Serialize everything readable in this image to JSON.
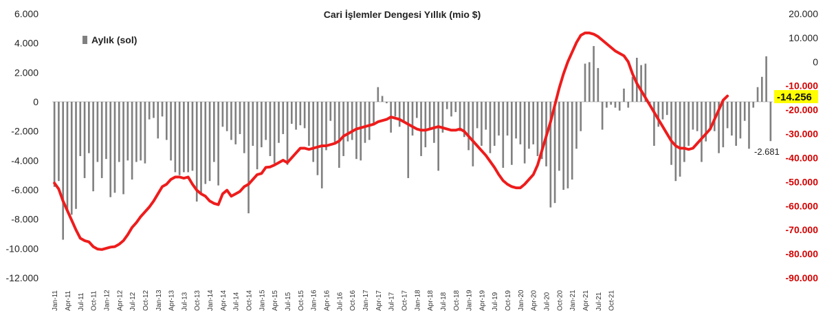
{
  "chart_data": {
    "type": "bar+line",
    "title": "Cari İşlemler Dengesi Yıllık (mio $)",
    "legend": {
      "label": "Aylık (sol)",
      "placement": "top-left"
    },
    "left_axis": {
      "range": [
        -12000,
        6000
      ],
      "ticks": [
        6000,
        4000,
        2000,
        0,
        -2000,
        -4000,
        -6000,
        -8000,
        -10000,
        -12000
      ],
      "tick_labels": [
        "6.000",
        "4.000",
        "2.000",
        "0",
        "-2.000",
        "-4.000",
        "-6.000",
        "-8.000",
        "-10.000",
        "-12.000"
      ]
    },
    "right_axis": {
      "range": [
        -90000,
        20000
      ],
      "ticks": [
        20000,
        10000,
        0,
        -10000,
        -20000,
        -30000,
        -40000,
        -50000,
        -60000,
        -70000,
        -80000,
        -90000
      ],
      "tick_labels": [
        "20.000",
        "10.000",
        "0",
        "-10.000",
        "-20.000",
        "-30.000",
        "-40.000",
        "-50.000",
        "-60.000",
        "-70.000",
        "-80.000",
        "-90.000"
      ]
    },
    "x_tick_labels": [
      "Jan-11",
      "Apr-11",
      "Jul-11",
      "Oct-11",
      "Jan-12",
      "Apr-12",
      "Jul-12",
      "Oct-12",
      "Jan-13",
      "Apr-13",
      "Jul-13",
      "Oct-13",
      "Jan-14",
      "Apr-14",
      "Jul-14",
      "Oct-14",
      "Jan-15",
      "Apr-15",
      "Jul-15",
      "Oct-15",
      "Jan-16",
      "Apr-16",
      "Jul-16",
      "Oct-16",
      "Jan-17",
      "Apr-17",
      "Jul-17",
      "Oct-17",
      "Jan-18",
      "Apr-18",
      "Jul-18",
      "Oct-18",
      "Jan-19",
      "Apr-19",
      "Jul-19",
      "Oct-19",
      "Jan-20",
      "Apr-20",
      "Jul-20",
      "Oct-20",
      "Jan-21",
      "Apr-21",
      "Jul-21",
      "Oct-21"
    ],
    "series": [
      {
        "name": "Aylık (sol)",
        "type": "bar",
        "axis": "left",
        "color": "#808080",
        "values": [
          -5800,
          -5400,
          -9400,
          -7400,
          -7700,
          -7300,
          -3700,
          -5200,
          -3500,
          -6100,
          -4100,
          -5200,
          -3900,
          -6500,
          -6200,
          -4100,
          -6300,
          -4000,
          -5300,
          -4100,
          -4000,
          -4200,
          -1200,
          -1100,
          -2500,
          -1000,
          -2600,
          -4000,
          -4800,
          -5000,
          -4800,
          -4800,
          -4700,
          -6800,
          -6200,
          -5600,
          -5400,
          -4100,
          -5700,
          -1700,
          -2000,
          -2600,
          -2900,
          -2200,
          -3500,
          -7600,
          -3000,
          -4600,
          -3100,
          -2600,
          -3700,
          -4200,
          -2800,
          -2200,
          -4300,
          -1500,
          -1900,
          -1600,
          -1800,
          -3000,
          -4100,
          -5000,
          -5900,
          -3300,
          -1300,
          -2900,
          -4500,
          -3700,
          -2700,
          -2600,
          -3900,
          -4000,
          -2800,
          -2600,
          -1500,
          1000,
          400,
          -100,
          -2100,
          -1000,
          -1700,
          -1300,
          -5200,
          -2300,
          -1100,
          -3700,
          -3100,
          -1900,
          -2800,
          -4700,
          -2100,
          -500,
          -1000,
          -700,
          -2000,
          -2400,
          -3300,
          -4400,
          -1800,
          -3000,
          -1900,
          -3500,
          -3000,
          -2300,
          -4500,
          -2300,
          -4300,
          -2500,
          -2900,
          -4200,
          -3200,
          -2900,
          -3700,
          -3900,
          -4400,
          -7200,
          -6900,
          -4700,
          -6000,
          -5900,
          -5300,
          -3200,
          -2000,
          2600,
          2700,
          3800,
          2300,
          -1900,
          -400,
          -200,
          -400,
          -600,
          900,
          -400,
          1700,
          3000,
          2500,
          2600,
          -200,
          -3000,
          -1700,
          -1200,
          -900,
          -4300,
          -5400,
          -5100,
          -4100,
          -3000,
          -1900,
          -2000,
          -4100,
          -2700,
          -1800,
          -2000,
          -3500,
          -3100,
          -1800,
          -2300,
          -3000,
          -2500,
          -1300,
          -3200,
          -400,
          1000,
          1700,
          3100,
          -2681
        ],
        "annotations": [
          {
            "text": "-2.681"
          }
        ]
      },
      {
        "name": "",
        "type": "line",
        "axis": "right",
        "color": "#ee1c1c",
        "values": [
          -50500,
          -53000,
          -58000,
          -62000,
          -66000,
          -70000,
          -73500,
          -74500,
          -75000,
          -77000,
          -78000,
          -78200,
          -77700,
          -77200,
          -77000,
          -76000,
          -74500,
          -72000,
          -69000,
          -67000,
          -64500,
          -62500,
          -60500,
          -58000,
          -55000,
          -52000,
          -51000,
          -49000,
          -48000,
          -48000,
          -48500,
          -48000,
          -51000,
          -53500,
          -55000,
          -56000,
          -58000,
          -59000,
          -59500,
          -55000,
          -53500,
          -56000,
          -55000,
          -54000,
          -52000,
          -51000,
          -49000,
          -47000,
          -46500,
          -44000,
          -43800,
          -43000,
          -42000,
          -41000,
          -42000,
          -40000,
          -38000,
          -36000,
          -36000,
          -36500,
          -36000,
          -35500,
          -35000,
          -35000,
          -34500,
          -34000,
          -33000,
          -31000,
          -30000,
          -29000,
          -28000,
          -27500,
          -27000,
          -26500,
          -26000,
          -25000,
          -24500,
          -24000,
          -23000,
          -23500,
          -24000,
          -25000,
          -26000,
          -27000,
          -28000,
          -28500,
          -28500,
          -28000,
          -27500,
          -27000,
          -27500,
          -28000,
          -28500,
          -28500,
          -28000,
          -29000,
          -31000,
          -33000,
          -35000,
          -37000,
          -39000,
          -41500,
          -44000,
          -47000,
          -49500,
          -51000,
          -52000,
          -52500,
          -52500,
          -51000,
          -49000,
          -47000,
          -43000,
          -37000,
          -31000,
          -25000,
          -18000,
          -11000,
          -5000,
          0,
          4000,
          8000,
          11000,
          12000,
          12000,
          11500,
          10500,
          9000,
          7500,
          6000,
          4500,
          3500,
          2500,
          0,
          -5000,
          -9000,
          -12000,
          -15000,
          -18000,
          -21000,
          -24000,
          -27000,
          -30000,
          -33000,
          -35000,
          -36000,
          -36000,
          -36500,
          -36000,
          -34000,
          -32000,
          -30000,
          -28000,
          -24000,
          -20000,
          -16000,
          -14256
        ],
        "annotations": [
          {
            "text": "-14.256"
          }
        ]
      }
    ]
  }
}
